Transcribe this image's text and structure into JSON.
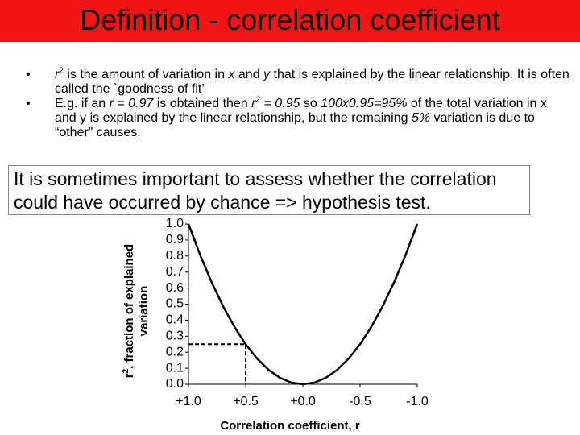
{
  "title": "Definition - correlation coefficient",
  "bullets": [
    [
      {
        "text": "r",
        "italic": true
      },
      {
        "text": "2",
        "sup": true
      },
      {
        "text": "  is the amount of variation in "
      },
      {
        "text": "x",
        "italic": true
      },
      {
        "text": " and "
      },
      {
        "text": "y",
        "italic": true
      },
      {
        "text": " that is explained by the linear relationship. It is often called the `goodness of fit’"
      }
    ],
    [
      {
        "text": "E.g. if an "
      },
      {
        "text": "r = 0.97",
        "italic": true
      },
      {
        "text": " is obtained then "
      },
      {
        "text": "r",
        "italic": true
      },
      {
        "text": "2",
        "sup": true
      },
      {
        "text": " = 0.95",
        "italic": true
      },
      {
        "text": " so "
      },
      {
        "text": "100x0.95=95%",
        "italic": true
      },
      {
        "text": " of the total variation in x and y is explained by the linear relationship, but the remaining "
      },
      {
        "text": "5%",
        "italic": true
      },
      {
        "text": " variation is due to “other” causes."
      }
    ]
  ],
  "callout": "It is sometimes important to assess whether the correlation could have occurred by chance => hypothesis test.",
  "chart_data": {
    "type": "line",
    "x": [
      1.0,
      0.9,
      0.8,
      0.7,
      0.6,
      0.5,
      0.4,
      0.3,
      0.2,
      0.1,
      0.0,
      -0.1,
      -0.2,
      -0.3,
      -0.4,
      -0.5,
      -0.6,
      -0.7,
      -0.8,
      -0.9,
      -1.0
    ],
    "values": [
      1.0,
      0.81,
      0.64,
      0.49,
      0.36,
      0.25,
      0.16,
      0.09,
      0.04,
      0.01,
      0.0,
      0.01,
      0.04,
      0.09,
      0.16,
      0.25,
      0.36,
      0.49,
      0.64,
      0.81,
      1.0
    ],
    "color": "#000000",
    "xlabel": "Correlation coefficient, r",
    "ylabel": [
      {
        "text": "r"
      },
      {
        "text": "2",
        "sup": true
      },
      {
        "text": ", fraction of explained variation"
      }
    ],
    "xlim": [
      1.0,
      -1.0
    ],
    "ylim": [
      0,
      1.0
    ],
    "xticks": [
      {
        "value": 1.0,
        "label": "+1.0"
      },
      {
        "value": 0.5,
        "label": "+0.5"
      },
      {
        "value": 0.0,
        "label": "+0.0"
      },
      {
        "value": -0.5,
        "label": "-0.5"
      },
      {
        "value": -1.0,
        "label": "-1.0"
      }
    ],
    "yticks": [
      {
        "value": 1.0,
        "label": "1.0"
      },
      0.9,
      0.8,
      0.7,
      0.6,
      0.5,
      0.4,
      0.3,
      0.2,
      0.1,
      {
        "value": 0,
        "label": "0.0"
      }
    ],
    "reference_point": {
      "x": 0.5,
      "y": 0.25
    }
  }
}
